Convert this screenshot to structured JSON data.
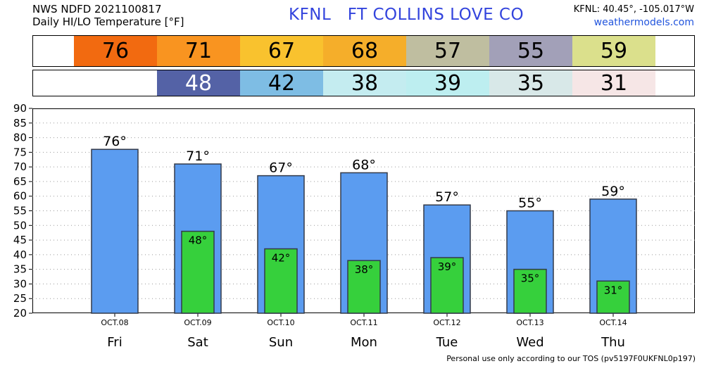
{
  "header": {
    "line1": "NWS NDFD 2021100817",
    "line2": "Daily HI/LO Temperature [°F]",
    "station": "KFNL   FT COLLINS LOVE CO",
    "coords": "KFNL: 40.45°, -105.017°W",
    "site": "weathermodels.com"
  },
  "strips": {
    "hi": [
      {
        "value": "76",
        "color": "#f26a10"
      },
      {
        "value": "71",
        "color": "#f99420"
      },
      {
        "value": "67",
        "color": "#f9c22e"
      },
      {
        "value": "68",
        "color": "#f5ae2a"
      },
      {
        "value": "57",
        "color": "#bfbea0"
      },
      {
        "value": "55",
        "color": "#a2a0b8"
      },
      {
        "value": "59",
        "color": "#dbe08c"
      }
    ],
    "lo": [
      {
        "value": "48",
        "color": "#5462a6",
        "text_color": "#ffffff"
      },
      {
        "value": "42",
        "color": "#7ebde4",
        "text_color": "#000000"
      },
      {
        "value": "38",
        "color": "#c4ecf0",
        "text_color": "#000000"
      },
      {
        "value": "39",
        "color": "#bdeef0",
        "text_color": "#000000"
      },
      {
        "value": "35",
        "color": "#d8e8e8",
        "text_color": "#000000"
      },
      {
        "value": "31",
        "color": "#f6e6e6",
        "text_color": "#000000"
      }
    ]
  },
  "chart_data": {
    "type": "bar",
    "title": "",
    "xlabel": "",
    "ylabel": "",
    "ylim": [
      20,
      90
    ],
    "yticks": [
      20,
      25,
      30,
      35,
      40,
      45,
      50,
      55,
      60,
      65,
      70,
      75,
      80,
      85,
      90
    ],
    "grid": true,
    "dates": [
      "OCT.08",
      "OCT.09",
      "OCT.10",
      "OCT.11",
      "OCT.12",
      "OCT.13",
      "OCT.14"
    ],
    "categories": [
      "Fri",
      "Sat",
      "Sun",
      "Mon",
      "Tue",
      "Wed",
      "Thu"
    ],
    "series": [
      {
        "values": [
          76,
          71,
          67,
          68,
          57,
          55,
          59
        ],
        "color": "#5b9cf0",
        "label_suffix": "°"
      },
      {
        "values": [
          null,
          48,
          42,
          38,
          39,
          35,
          31
        ],
        "color": "#36d03c",
        "label_suffix": "°"
      }
    ]
  },
  "footer": {
    "note": "Personal use only according to our TOS (pv5197F0UKFNL0p197)"
  }
}
